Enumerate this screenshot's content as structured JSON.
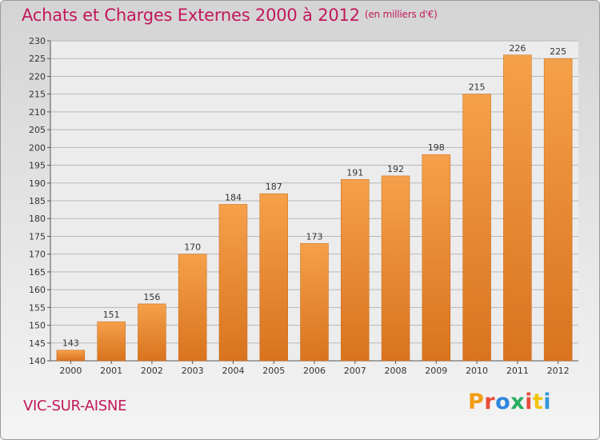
{
  "header": {
    "title": "Achats et Charges Externes 2000 à 2012",
    "subtitle": "(en milliers d'€)"
  },
  "footer": {
    "location": "VIC-SUR-AISNE",
    "brand": "Proxiti",
    "brand_colors": [
      "#f39c12",
      "#e84c3d",
      "#2e86de",
      "#27ae60",
      "#e84c3d",
      "#f1c40f",
      "#3498db"
    ]
  },
  "colors": {
    "bar_light": "#f5a04a",
    "bar_dark": "#d9731e",
    "accent": "#c2185b",
    "grid": "#b8b8b8"
  },
  "chart_data": {
    "type": "bar",
    "title": "Achats et Charges Externes 2000 à 2012",
    "subtitle": "(en milliers d'€)",
    "categories": [
      "2000",
      "2001",
      "2002",
      "2003",
      "2004",
      "2005",
      "2006",
      "2007",
      "2008",
      "2009",
      "2010",
      "2011",
      "2012"
    ],
    "values": [
      143,
      151,
      156,
      170,
      184,
      187,
      173,
      191,
      192,
      198,
      215,
      226,
      225
    ],
    "ylim": [
      140,
      230
    ],
    "ytick_step": 5,
    "grid": true,
    "data_labels": true
  }
}
